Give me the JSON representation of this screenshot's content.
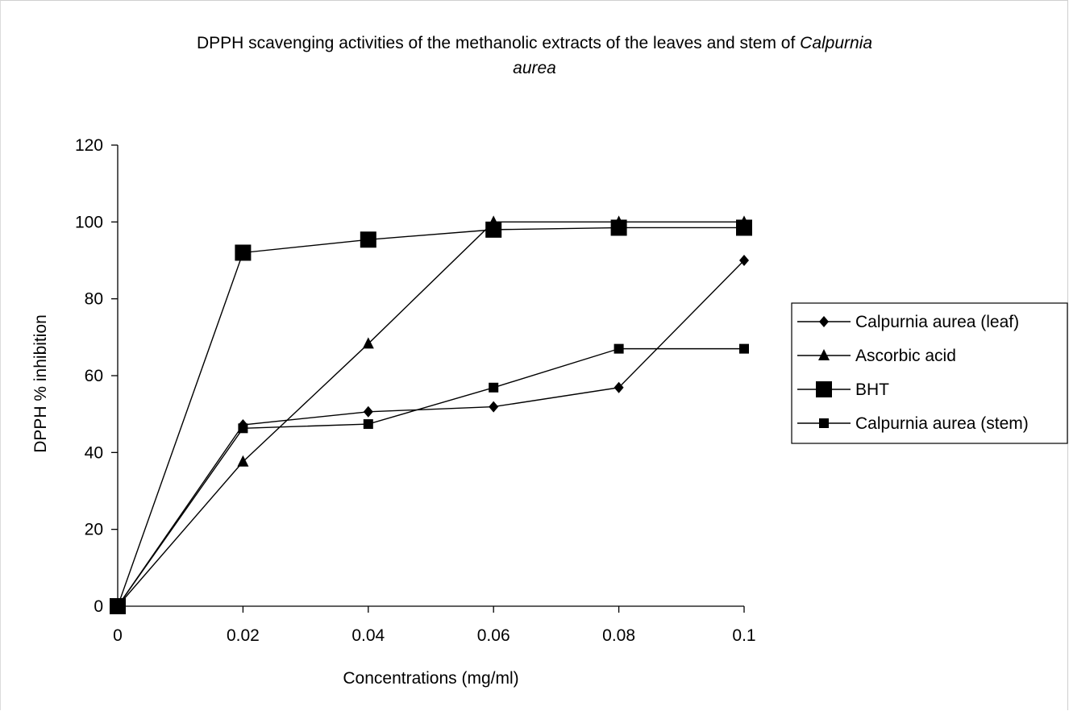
{
  "chart_data": {
    "type": "line",
    "title_part1": "DPPH scavenging activities of the methanolic extracts of the leaves and stem of ",
    "title_italic1": "Calpurnia",
    "title_italic2": "aurea",
    "xlabel": "Concentrations (mg/ml)",
    "ylabel": "DPPH % inhibition",
    "x": [
      0,
      0.02,
      0.04,
      0.06,
      0.08,
      0.1
    ],
    "x_tick_labels": [
      "0",
      "0.02",
      "0.04",
      "0.06",
      "0.08",
      "0.1"
    ],
    "y_ticks": [
      0,
      20,
      40,
      60,
      80,
      100,
      120
    ],
    "y_tick_labels": [
      "0",
      "20",
      "40",
      "60",
      "80",
      "100",
      "120"
    ],
    "xlim": [
      0,
      0.1
    ],
    "ylim": [
      0,
      120
    ],
    "grid": false,
    "legend_position": "right",
    "series": [
      {
        "name": "Calpurnia aurea (leaf)",
        "marker": "diamond",
        "values": [
          0,
          47.2,
          50.6,
          51.9,
          56.9,
          90.0
        ]
      },
      {
        "name": "Ascorbic acid",
        "marker": "triangle",
        "values": [
          0,
          37.6,
          68.3,
          100,
          100,
          100
        ]
      },
      {
        "name": "BHT",
        "marker": "square-large",
        "values": [
          0,
          92.0,
          95.4,
          98.0,
          98.5,
          98.5
        ]
      },
      {
        "name": "Calpurnia aurea (stem)",
        "marker": "square",
        "values": [
          0,
          46.3,
          47.4,
          56.9,
          67.0,
          67.0
        ]
      }
    ]
  }
}
